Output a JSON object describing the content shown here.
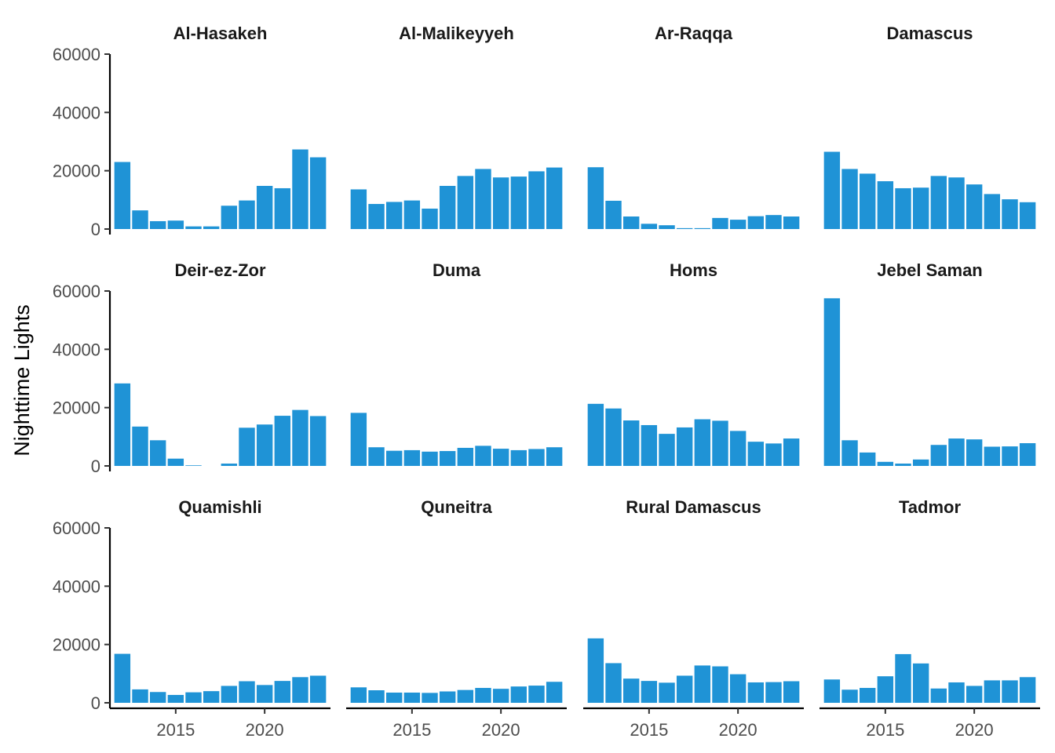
{
  "chart_data": {
    "type": "bar",
    "layout": "facet grid, 3 rows x 4 columns, shared axes",
    "ylabel": "Nighttime Lights",
    "xlabel": "",
    "x": [
      2012,
      2013,
      2014,
      2015,
      2016,
      2017,
      2018,
      2019,
      2020,
      2021,
      2022,
      2023
    ],
    "ylim": [
      0,
      60000
    ],
    "xlim": [
      2011.3,
      2023.7
    ],
    "yticks": [
      0,
      20000,
      40000,
      60000
    ],
    "xticks": [
      2015,
      2020
    ],
    "grid": false,
    "bar_color": "#1f93d6",
    "facets": [
      {
        "name": "Al-Hasakeh",
        "values": [
          23000,
          6400,
          2700,
          2900,
          900,
          900,
          8000,
          9800,
          14800,
          14000,
          27300,
          24600
        ]
      },
      {
        "name": "Al-Malikeyyeh",
        "values": [
          13600,
          8600,
          9300,
          9800,
          7000,
          14800,
          18200,
          20600,
          17700,
          18000,
          19800,
          21100
        ]
      },
      {
        "name": "Ar-Raqqa",
        "values": [
          21200,
          9700,
          4300,
          1800,
          1300,
          300,
          300,
          3800,
          3200,
          4400,
          4800,
          4300
        ]
      },
      {
        "name": "Damascus",
        "values": [
          26500,
          20600,
          19000,
          16400,
          14000,
          14200,
          18200,
          17700,
          15300,
          12000,
          10200,
          9200
        ]
      },
      {
        "name": "Deir-ez-Zor",
        "values": [
          28300,
          13500,
          8800,
          2500,
          200,
          0,
          800,
          13100,
          14200,
          17200,
          19200,
          17100
        ]
      },
      {
        "name": "Duma",
        "values": [
          18200,
          6400,
          5200,
          5400,
          4900,
          5100,
          6200,
          6900,
          5900,
          5400,
          5800,
          6400
        ]
      },
      {
        "name": "Homs",
        "values": [
          21300,
          19700,
          15600,
          14000,
          11000,
          13200,
          16000,
          15500,
          12000,
          8300,
          7700,
          9400
        ]
      },
      {
        "name": "Jebel Saman",
        "values": [
          57500,
          8800,
          4600,
          1400,
          800,
          2200,
          7200,
          9400,
          9100,
          6600,
          6700,
          7800
        ]
      },
      {
        "name": "Quamishli",
        "values": [
          16800,
          4600,
          3700,
          2700,
          3600,
          4000,
          5800,
          7400,
          6100,
          7500,
          8800,
          9300
        ]
      },
      {
        "name": "Quneitra",
        "values": [
          5300,
          4300,
          3500,
          3500,
          3400,
          3900,
          4400,
          5100,
          4800,
          5600,
          5900,
          7200
        ]
      },
      {
        "name": "Rural Damascus",
        "values": [
          22100,
          13600,
          8300,
          7500,
          6900,
          9300,
          12800,
          12500,
          9800,
          7000,
          7100,
          7400
        ]
      },
      {
        "name": "Tadmor",
        "values": [
          8000,
          4500,
          5100,
          9100,
          16700,
          13500,
          4900,
          7000,
          5800,
          7700,
          7700,
          8800
        ]
      }
    ]
  }
}
